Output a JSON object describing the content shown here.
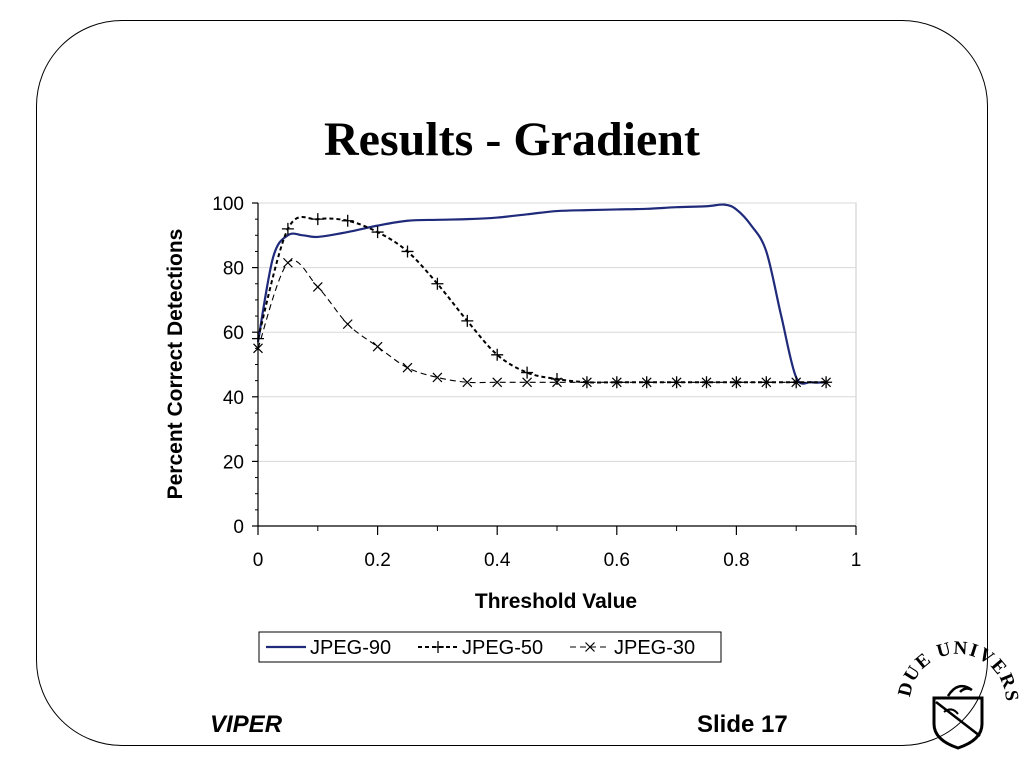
{
  "slide": {
    "title": "Results - Gradient",
    "footer_left": "VIPER",
    "footer_right": "Slide 17",
    "logo": "purdue-university-seal",
    "logo_text": "PURDUE UNIVERSITY"
  },
  "chart_data": {
    "type": "line",
    "title": "",
    "xlabel": "Threshold Value",
    "ylabel": "Percent Correct Detections",
    "xlim": [
      0,
      1
    ],
    "ylim": [
      0,
      100
    ],
    "xticks": [
      "0",
      "0.2",
      "0.4",
      "0.6",
      "0.8",
      "1"
    ],
    "yticks": [
      "0",
      "20",
      "40",
      "60",
      "80",
      "100"
    ],
    "grid": "horizontal",
    "legend": "bottom",
    "series": [
      {
        "name": "JPEG-90",
        "color": "#1f2a7a",
        "marker": "none",
        "x": [
          0,
          0.025,
          0.05,
          0.075,
          0.1,
          0.15,
          0.2,
          0.25,
          0.3,
          0.35,
          0.4,
          0.45,
          0.5,
          0.55,
          0.6,
          0.65,
          0.7,
          0.75,
          0.78,
          0.8,
          0.825,
          0.85,
          0.875,
          0.9,
          0.925,
          0.95
        ],
        "y": [
          57,
          83,
          90,
          90,
          89.5,
          91,
          93,
          94.5,
          94.8,
          95,
          95.5,
          96.5,
          97.5,
          97.8,
          98,
          98.2,
          98.7,
          99,
          99.5,
          98,
          93,
          85,
          65,
          46,
          44.5,
          44.5
        ]
      },
      {
        "name": "JPEG-50",
        "color": "#000000",
        "marker": "plus",
        "x": [
          0,
          0.05,
          0.1,
          0.15,
          0.2,
          0.25,
          0.3,
          0.35,
          0.4,
          0.45,
          0.5,
          0.55,
          0.6,
          0.65,
          0.7,
          0.75,
          0.8,
          0.85,
          0.9,
          0.95
        ],
        "y": [
          58,
          92,
          95,
          94.5,
          91,
          85,
          75,
          63.5,
          53,
          47.5,
          45.5,
          44.5,
          44.5,
          44.5,
          44.5,
          44.5,
          44.5,
          44.5,
          44.5,
          44.5
        ]
      },
      {
        "name": "JPEG-30",
        "color": "#000000",
        "marker": "x",
        "x": [
          0,
          0.05,
          0.1,
          0.15,
          0.2,
          0.25,
          0.3,
          0.35,
          0.4,
          0.45,
          0.5,
          0.55,
          0.6,
          0.65,
          0.7,
          0.75,
          0.8,
          0.85,
          0.9,
          0.95
        ],
        "y": [
          55,
          81.5,
          74,
          62.5,
          55.5,
          49,
          46,
          44.5,
          44.5,
          44.5,
          44.5,
          44.5,
          44.5,
          44.5,
          44.5,
          44.5,
          44.5,
          44.5,
          44.5,
          44.5
        ]
      }
    ]
  }
}
